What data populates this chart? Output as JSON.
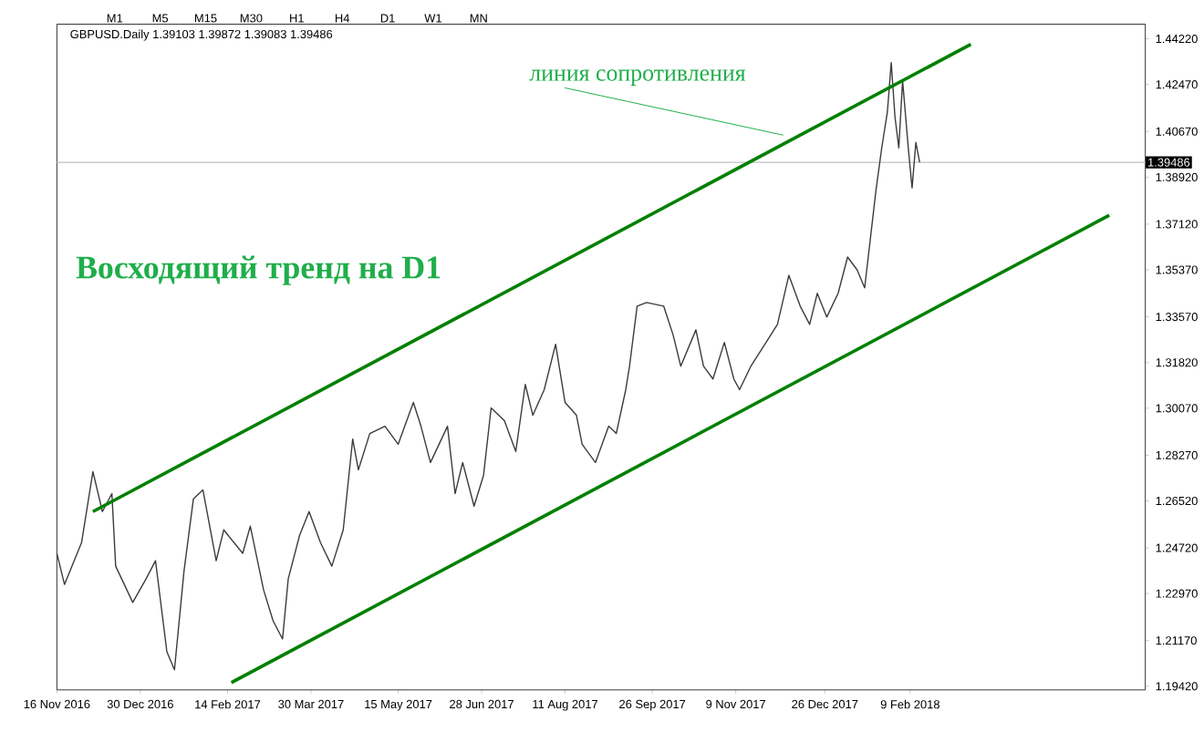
{
  "chart_data": {
    "type": "line",
    "title": "GBPUSD.Daily 1.39103 1.39872 1.39083 1.39486",
    "series": [
      {
        "color": "#3c3c3c",
        "x": [
          "2016-11-16",
          "2016-11-20",
          "2016-11-29",
          "2016-12-05",
          "2016-12-10",
          "2016-12-15",
          "2016-12-17",
          "2016-12-26",
          "2017-01-02",
          "2017-01-07",
          "2017-01-13",
          "2017-01-17",
          "2017-01-22",
          "2017-01-27",
          "2017-02-01",
          "2017-02-08",
          "2017-02-12",
          "2017-02-22",
          "2017-02-26",
          "2017-03-05",
          "2017-03-10",
          "2017-03-15",
          "2017-03-18",
          "2017-03-24",
          "2017-03-29",
          "2017-04-04",
          "2017-04-10",
          "2017-04-16",
          "2017-04-21",
          "2017-04-24",
          "2017-04-30",
          "2017-05-08",
          "2017-05-15",
          "2017-05-23",
          "2017-05-27",
          "2017-06-01",
          "2017-06-10",
          "2017-06-14",
          "2017-06-18",
          "2017-06-24",
          "2017-06-29",
          "2017-07-03",
          "2017-07-10",
          "2017-07-16",
          "2017-07-21",
          "2017-07-25",
          "2017-07-31",
          "2017-08-06",
          "2017-08-11",
          "2017-08-17",
          "2017-08-20",
          "2017-08-27",
          "2017-09-03",
          "2017-09-07",
          "2017-09-12",
          "2017-09-14",
          "2017-09-18",
          "2017-09-23",
          "2017-10-02",
          "2017-10-07",
          "2017-10-11",
          "2017-10-19",
          "2017-10-23",
          "2017-10-28",
          "2017-11-03",
          "2017-11-08",
          "2017-11-11",
          "2017-11-17",
          "2017-11-25",
          "2017-12-01",
          "2017-12-07",
          "2017-12-13",
          "2017-12-18",
          "2017-12-22",
          "2017-12-27",
          "2018-01-02",
          "2018-01-07",
          "2018-01-12",
          "2018-01-16",
          "2018-01-22",
          "2018-01-25",
          "2018-01-28",
          "2018-01-30",
          "2018-02-01",
          "2018-02-03",
          "2018-02-05",
          "2018-02-08",
          "2018-02-10",
          "2018-02-12",
          "2018-02-14"
        ],
        "values": [
          1.2451,
          1.2332,
          1.2492,
          1.2764,
          1.2611,
          1.268,
          1.2402,
          1.2263,
          1.2353,
          1.2423,
          1.2074,
          1.2005,
          1.2381,
          1.266,
          1.2694,
          1.2423,
          1.2541,
          1.2451,
          1.2555,
          1.2311,
          1.2193,
          1.2123,
          1.2353,
          1.252,
          1.2611,
          1.2492,
          1.2402,
          1.2541,
          1.2889,
          1.2771,
          1.291,
          1.2938,
          1.2869,
          1.3029,
          1.2938,
          1.2799,
          1.2938,
          1.268,
          1.2799,
          1.2632,
          1.275,
          1.3008,
          1.2959,
          1.2841,
          1.3098,
          1.298,
          1.3078,
          1.3252,
          1.3029,
          1.298,
          1.2869,
          1.2799,
          1.2938,
          1.291,
          1.3078,
          1.3168,
          1.3398,
          1.3412,
          1.3398,
          1.3287,
          1.3168,
          1.3307,
          1.3168,
          1.3119,
          1.3259,
          1.3119,
          1.3078,
          1.3168,
          1.3259,
          1.3328,
          1.3516,
          1.3398,
          1.3328,
          1.3447,
          1.3356,
          1.3447,
          1.3586,
          1.3537,
          1.3468,
          1.3844,
          1.4004,
          1.4143,
          1.4331,
          1.4122,
          1.4004,
          1.4262,
          1.4004,
          1.3851,
          1.4025,
          1.3949
        ]
      },
      {
        "color": "#008000",
        "x": [
          "2016-12-05",
          "2018-03-13"
        ],
        "values": [
          1.2611,
          1.4401
        ]
      },
      {
        "color": "#008000",
        "x": [
          "2017-02-16",
          "2018-05-25"
        ],
        "values": [
          1.1956,
          1.3746
        ]
      }
    ],
    "xlim": [
      "2016-11-16",
      "2018-06-13"
    ],
    "xticks": [
      {
        "value": "2016-11-16",
        "label": "16 Nov 2016"
      },
      {
        "value": "2016-12-30",
        "label": "30 Dec 2016"
      },
      {
        "value": "2017-02-14",
        "label": "14 Feb 2017"
      },
      {
        "value": "2017-03-30",
        "label": "30 Mar 2017"
      },
      {
        "value": "2017-05-15",
        "label": "15 May 2017"
      },
      {
        "value": "2017-06-28",
        "label": "28 Jun 2017"
      },
      {
        "value": "2017-08-11",
        "label": "11 Aug 2017"
      },
      {
        "value": "2017-09-26",
        "label": "26 Sep 2017"
      },
      {
        "value": "2017-11-09",
        "label": "9 Nov 2017"
      },
      {
        "value": "2017-12-26",
        "label": "26 Dec 2017"
      },
      {
        "value": "2018-02-09",
        "label": "9 Feb 2018"
      }
    ],
    "ylim": [
      1.1928,
      1.4478
    ],
    "yticks": [
      {
        "value": 1.1942,
        "label": "1.19420"
      },
      {
        "value": 1.2117,
        "label": "1.21170"
      },
      {
        "value": 1.2297,
        "label": "1.22970"
      },
      {
        "value": 1.2472,
        "label": "1.24720"
      },
      {
        "value": 1.2652,
        "label": "1.26520"
      },
      {
        "value": 1.2827,
        "label": "1.28270"
      },
      {
        "value": 1.3007,
        "label": "1.30070"
      },
      {
        "value": 1.3182,
        "label": "1.31820"
      },
      {
        "value": 1.3357,
        "label": "1.33570"
      },
      {
        "value": 1.3537,
        "label": "1.35370"
      },
      {
        "value": 1.3712,
        "label": "1.37120"
      },
      {
        "value": 1.3892,
        "label": "1.38920"
      },
      {
        "value": 1.4067,
        "label": "1.40670"
      },
      {
        "value": 1.4247,
        "label": "1.42470"
      },
      {
        "value": 1.4422,
        "label": "1.44220"
      }
    ],
    "ref_lines": [
      {
        "axis": "y",
        "value": 1.39486,
        "label": "1.39486",
        "color": "#c0c0c0"
      }
    ],
    "annotations": [
      {
        "text": "линия сопротивления",
        "x": "2017-12-04",
        "y": 1.4053
      },
      "Восходящий тренд на D1",
      "M1",
      "M5",
      "M15",
      "M30",
      "H1",
      "H4",
      "D1",
      "W1",
      "MN"
    ],
    "grid": false
  }
}
